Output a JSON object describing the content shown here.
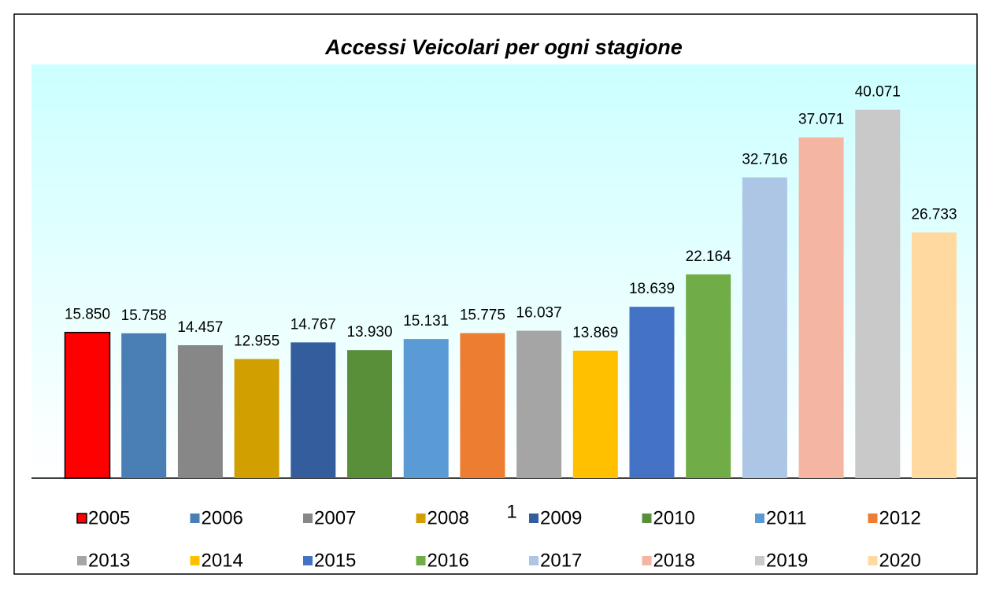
{
  "chart_data": {
    "type": "bar",
    "title": "Accessi Veicolari per ogni stagione",
    "categories": [
      "1"
    ],
    "ylim": [
      0,
      45000
    ],
    "series": [
      {
        "name": "2005",
        "color": "#ff0000",
        "edgecolor": "#000000",
        "values": [
          15850
        ],
        "value_labels": [
          "15.850"
        ]
      },
      {
        "name": "2006",
        "color": "#4a7fb5",
        "values": [
          15758
        ],
        "value_labels": [
          "15.758"
        ]
      },
      {
        "name": "2007",
        "color": "#878787",
        "values": [
          14457
        ],
        "value_labels": [
          "14.457"
        ]
      },
      {
        "name": "2008",
        "color": "#d19f00",
        "values": [
          12955
        ],
        "value_labels": [
          "12.955"
        ]
      },
      {
        "name": "2009",
        "color": "#345d9e",
        "values": [
          14767
        ],
        "value_labels": [
          "14.767"
        ]
      },
      {
        "name": "2010",
        "color": "#5a8f3a",
        "values": [
          13930
        ],
        "value_labels": [
          "13.930"
        ]
      },
      {
        "name": "2011",
        "color": "#5b9bd5",
        "values": [
          15131
        ],
        "value_labels": [
          "15.131"
        ]
      },
      {
        "name": "2012",
        "color": "#ed7d31",
        "values": [
          15775
        ],
        "value_labels": [
          "15.775"
        ]
      },
      {
        "name": "2013",
        "color": "#a5a5a5",
        "values": [
          16037
        ],
        "value_labels": [
          "16.037"
        ]
      },
      {
        "name": "2014",
        "color": "#ffc000",
        "values": [
          13869
        ],
        "value_labels": [
          "13.869"
        ]
      },
      {
        "name": "2015",
        "color": "#4472c4",
        "values": [
          18639
        ],
        "value_labels": [
          "18.639"
        ]
      },
      {
        "name": "2016",
        "color": "#70ad47",
        "values": [
          22164
        ],
        "value_labels": [
          "22.164"
        ]
      },
      {
        "name": "2017",
        "color": "#adc6e5",
        "values": [
          32716
        ],
        "value_labels": [
          "32.716"
        ]
      },
      {
        "name": "2018",
        "color": "#f4b6a2",
        "values": [
          37071
        ],
        "value_labels": [
          "37.071"
        ]
      },
      {
        "name": "2019",
        "color": "#c9c9c9",
        "values": [
          40071
        ],
        "value_labels": [
          "40.071"
        ]
      },
      {
        "name": "2020",
        "color": "#ffd9a0",
        "values": [
          26733
        ],
        "value_labels": [
          "26.733"
        ]
      }
    ]
  }
}
